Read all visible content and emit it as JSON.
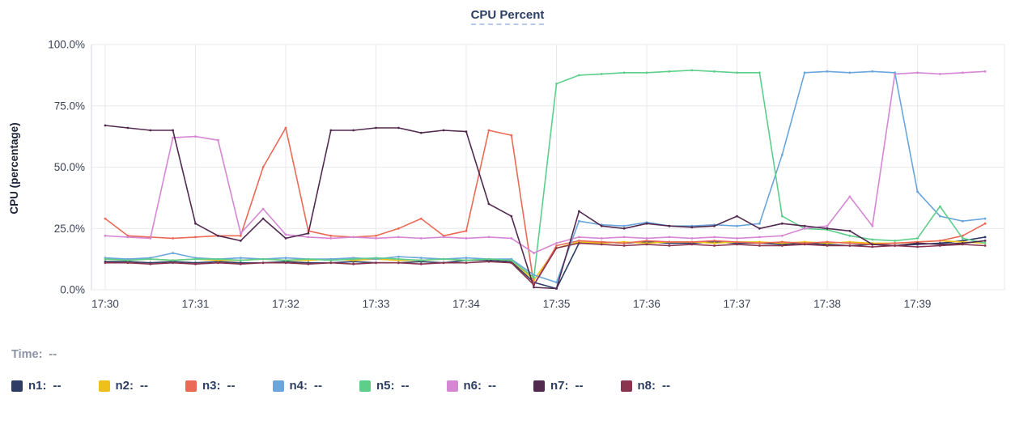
{
  "title": "CPU Percent",
  "time": {
    "label": "Time:",
    "value": "--"
  },
  "legend": [
    {
      "label": "n1:",
      "value": "--",
      "color": "#2e3d66"
    },
    {
      "label": "n2:",
      "value": "--",
      "color": "#efc018"
    },
    {
      "label": "n3:",
      "value": "--",
      "color": "#ea6a56"
    },
    {
      "label": "n4:",
      "value": "--",
      "color": "#6aa5dc"
    },
    {
      "label": "n5:",
      "value": "--",
      "color": "#5ecf8b"
    },
    {
      "label": "n6:",
      "value": "--",
      "color": "#d687d3"
    },
    {
      "label": "n7:",
      "value": "--",
      "color": "#522a50"
    },
    {
      "label": "n8:",
      "value": "--",
      "color": "#8a3550"
    }
  ],
  "chart_data": {
    "type": "line",
    "title": "CPU Percent",
    "xlabel": "",
    "ylabel": "CPU (percentage)",
    "ylim": [
      0,
      100
    ],
    "grid": true,
    "legend_position": "bottom",
    "y_ticks": [
      "0.0%",
      "25.0%",
      "50.0%",
      "75.0%",
      "100.0%"
    ],
    "x_ticks": [
      "17:30",
      "17:31",
      "17:32",
      "17:33",
      "17:34",
      "17:35",
      "17:36",
      "17:37",
      "17:38",
      "17:39"
    ],
    "x": [
      "17:30:00",
      "17:30:15",
      "17:30:30",
      "17:30:45",
      "17:31:00",
      "17:31:15",
      "17:31:30",
      "17:31:45",
      "17:32:00",
      "17:32:15",
      "17:32:30",
      "17:32:45",
      "17:33:00",
      "17:33:15",
      "17:33:30",
      "17:33:45",
      "17:34:00",
      "17:34:15",
      "17:34:30",
      "17:34:45",
      "17:35:00",
      "17:35:15",
      "17:35:30",
      "17:35:45",
      "17:36:00",
      "17:36:15",
      "17:36:30",
      "17:36:45",
      "17:37:00",
      "17:37:15",
      "17:37:30",
      "17:37:45",
      "17:38:00",
      "17:38:15",
      "17:38:30",
      "17:38:45",
      "17:39:00",
      "17:39:15",
      "17:39:30",
      "17:39:45"
    ],
    "series": [
      {
        "name": "n1",
        "color": "#2e3d66",
        "values": [
          11.5,
          11.5,
          11,
          11.5,
          11,
          11.5,
          11,
          11,
          11.5,
          11,
          11,
          11.5,
          11,
          11,
          11.5,
          11,
          12,
          12,
          11.5,
          3,
          0.5,
          19,
          19.5,
          19,
          19.5,
          19,
          19,
          19.5,
          19,
          19,
          18.5,
          19,
          18.5,
          18,
          18.5,
          18,
          18.5,
          19,
          20,
          21.5
        ]
      },
      {
        "name": "n2",
        "color": "#efc018",
        "values": [
          12.5,
          12,
          12.5,
          12,
          12.5,
          12,
          12,
          12.5,
          12,
          12,
          12.5,
          12,
          12.5,
          12,
          12,
          12.5,
          12,
          12.5,
          12,
          4,
          17,
          19.5,
          19,
          19.5,
          19,
          19.5,
          19.5,
          19,
          19.5,
          19.5,
          19,
          19.5,
          19,
          19.5,
          19,
          19,
          19.5,
          20,
          19.5,
          19
        ]
      },
      {
        "name": "n3",
        "color": "#ea6a56",
        "values": [
          29,
          22,
          21.5,
          21,
          21.5,
          22,
          22,
          50,
          66,
          24,
          22,
          21.5,
          22,
          25,
          29,
          22,
          24,
          65,
          63,
          2,
          18,
          20,
          19.5,
          19,
          20,
          19.5,
          19.5,
          20,
          19.5,
          19,
          19.5,
          19,
          19.5,
          19,
          18.5,
          19,
          19.5,
          20,
          22,
          27
        ]
      },
      {
        "name": "n4",
        "color": "#6aa5dc",
        "values": [
          13,
          12.5,
          13,
          15,
          13,
          12.5,
          13,
          12.5,
          13,
          12.5,
          12.5,
          13,
          12.5,
          13.5,
          13,
          12.5,
          13,
          12.5,
          12.5,
          6,
          3,
          28,
          26.5,
          26,
          27.5,
          26,
          26,
          26.5,
          26,
          27,
          55,
          88.5,
          89,
          88.5,
          89,
          88.5,
          40,
          30,
          28,
          29
        ]
      },
      {
        "name": "n5",
        "color": "#5ecf8b",
        "values": [
          12.5,
          12,
          12.5,
          12,
          12.5,
          12.5,
          12,
          12.5,
          12,
          12.5,
          12,
          12.5,
          13,
          12.5,
          12,
          12.5,
          12,
          12.5,
          12,
          5,
          84,
          87.5,
          88,
          88.5,
          88.5,
          89,
          89.5,
          89,
          88.5,
          88.5,
          30,
          25,
          24.5,
          22,
          20.5,
          20,
          21,
          34,
          21,
          19
        ]
      },
      {
        "name": "n6",
        "color": "#d687d3",
        "values": [
          22,
          21.5,
          21,
          62,
          62.5,
          61,
          23,
          33,
          22.5,
          21.5,
          21,
          21.5,
          21,
          21.5,
          21,
          21.5,
          21,
          21.5,
          21,
          15,
          19,
          21.5,
          21,
          21.5,
          21,
          21.5,
          21,
          21.5,
          21,
          21.5,
          22,
          25,
          26,
          38,
          26,
          88,
          88.5,
          88,
          88.5,
          89
        ]
      },
      {
        "name": "n7",
        "color": "#522a50",
        "values": [
          67,
          66,
          65,
          65,
          27,
          22,
          20,
          29,
          21,
          23,
          65,
          65,
          66,
          66,
          64,
          65,
          64.5,
          35,
          30,
          1,
          0.5,
          32,
          26,
          25,
          27,
          26,
          25.5,
          26,
          30,
          25,
          27,
          26,
          25,
          24,
          18.5,
          18,
          19,
          18.5,
          19,
          20
        ]
      },
      {
        "name": "n8",
        "color": "#8a3550",
        "values": [
          11,
          11,
          10.5,
          11,
          10.5,
          11,
          10.5,
          11,
          11,
          10.5,
          11,
          10.5,
          11,
          11,
          10.5,
          11,
          11,
          11.5,
          11,
          2,
          17,
          19,
          18.5,
          18,
          18.5,
          18,
          18.5,
          18,
          18.5,
          18,
          18,
          18.5,
          18,
          18,
          17.5,
          18,
          17.5,
          18,
          18.5,
          18
        ]
      }
    ]
  }
}
